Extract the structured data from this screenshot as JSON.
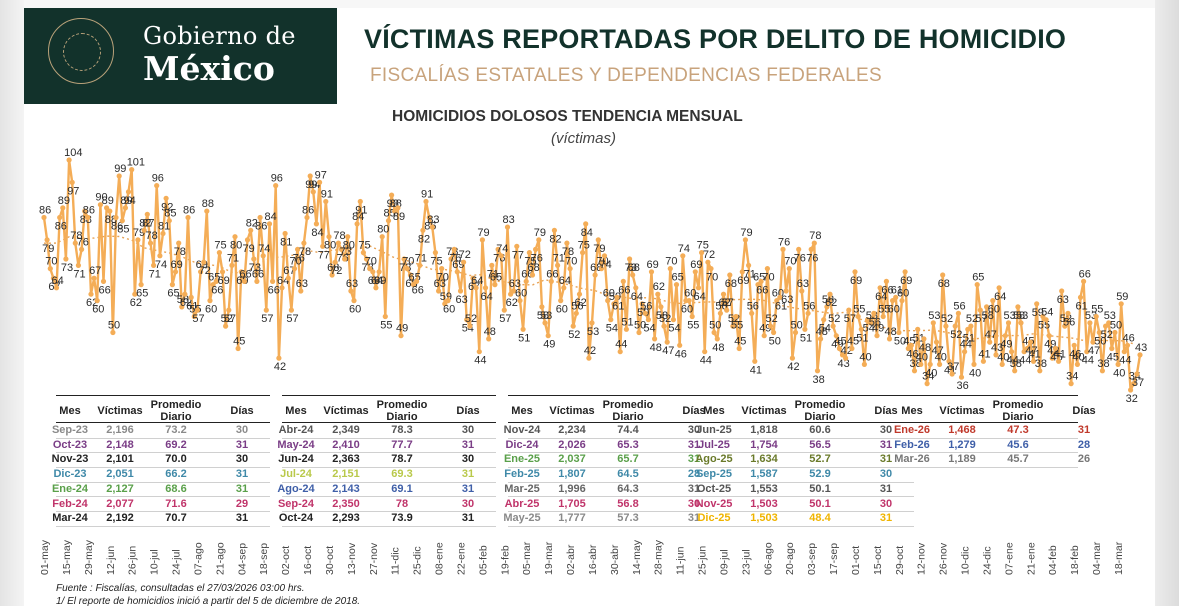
{
  "logo": {
    "line1": "Gobierno de",
    "line2": "México"
  },
  "title": "VÍCTIMAS REPORTADAS POR DELITO DE HOMICIDIO",
  "subtitle": "FISCALÍAS ESTATALES Y DEPENDENCIAS FEDERALES",
  "colors": {
    "line": "#f4ad57",
    "dark_green": "#12322b",
    "gold": "#c8a37c",
    "trend": "#e7a255"
  },
  "chart_data": {
    "type": "line",
    "title": "HOMICIDIOS DOLOSOS TENDENCIA MENSUAL",
    "subtitle": "(víctimas)",
    "x_ticks": [
      "01-may",
      "15-may",
      "29-may",
      "12-jun",
      "26-jun",
      "10-jul",
      "24-jul",
      "07-ago",
      "21-ago",
      "04-sep",
      "18-sep",
      "02-oct",
      "16-oct",
      "30-oct",
      "13-nov",
      "27-nov",
      "11-dic",
      "25-dic",
      "08-ene",
      "22-ene",
      "05-feb",
      "19-feb",
      "05-mar",
      "19-mar",
      "02-abr",
      "16-abr",
      "30-abr",
      "14-may",
      "28-may",
      "11-jun",
      "25-jun",
      "09-jul",
      "23-jul",
      "06-ago",
      "20-ago",
      "03-sep",
      "17-sep",
      "01-oct",
      "15-oct",
      "29-oct",
      "12-nov",
      "26-nov",
      "10-dic",
      "24-dic",
      "07-ene",
      "21-ene",
      "04-feb",
      "18-feb",
      "04-mar",
      "18-mar"
    ],
    "series": [
      {
        "name": "",
        "values": [
          86,
          79,
          70,
          67,
          64,
          86,
          89,
          73,
          104,
          97,
          78,
          71,
          76,
          88,
          86,
          62,
          67,
          60,
          90,
          66,
          89,
          88,
          50,
          86,
          99,
          85,
          89,
          94,
          101,
          62,
          79,
          65,
          82,
          87,
          78,
          71,
          96,
          74,
          81,
          92,
          85,
          65,
          69,
          78,
          58,
          62,
          86,
          61,
          55,
          57,
          69,
          72,
          88,
          60,
          65,
          66,
          75,
          69,
          52,
          57,
          71,
          80,
          45,
          69,
          66,
          79,
          82,
          73,
          66,
          86,
          74,
          57,
          84,
          66,
          96,
          42,
          64,
          81,
          67,
          57,
          70,
          76,
          63,
          78,
          86,
          99,
          94,
          84,
          97,
          77,
          91,
          80,
          68,
          72,
          78,
          76,
          73,
          80,
          63,
          60,
          84,
          91,
          75,
          73,
          70,
          69,
          64,
          69,
          80,
          55,
          85,
          93,
          88,
          89,
          49,
          73,
          70,
          68,
          65,
          66,
          71,
          82,
          91,
          86,
          83,
          75,
          63,
          70,
          59,
          60,
          73,
          76,
          69,
          63,
          72,
          54,
          52,
          67,
          64,
          44,
          79,
          64,
          48,
          71,
          65,
          76,
          74,
          57,
          83,
          62,
          63,
          77,
          60,
          51,
          66,
          75,
          68,
          76,
          79,
          58,
          53,
          49,
          66,
          82,
          71,
          60,
          64,
          78,
          70,
          52,
          56,
          62,
          75,
          84,
          42,
          53,
          68,
          79,
          70,
          74,
          60,
          54,
          59,
          61,
          44,
          66,
          51,
          73,
          68,
          64,
          50,
          59,
          56,
          54,
          69,
          48,
          62,
          58,
          52,
          47,
          70,
          54,
          65,
          46,
          74,
          60,
          60,
          55,
          69,
          64,
          75,
          44,
          72,
          70,
          50,
          48,
          56,
          62,
          57,
          68,
          52,
          55,
          45,
          69,
          79,
          71,
          56,
          41,
          65,
          66,
          49,
          70,
          52,
          50,
          60,
          61,
          76,
          63,
          70,
          42,
          50,
          76,
          63,
          51,
          56,
          76,
          78,
          38,
          48,
          54,
          58,
          62,
          52,
          49,
          45,
          43,
          42,
          57,
          45,
          69,
          55,
          51,
          40,
          54,
          53,
          56,
          49,
          64,
          55,
          66,
          48,
          60,
          61,
          50,
          60,
          69,
          45,
          46,
          38,
          51,
          40,
          48,
          34,
          40,
          53,
          47,
          40,
          68,
          52,
          41,
          37,
          52,
          56,
          36,
          44,
          51,
          52,
          40,
          65,
          57,
          41,
          58,
          47,
          60,
          43,
          64,
          40,
          49,
          53,
          44,
          38,
          58,
          53,
          44,
          45,
          47,
          41,
          59,
          38,
          55,
          54,
          49,
          42,
          45,
          41,
          63,
          52,
          56,
          34,
          46,
          40,
          61,
          66,
          44,
          53,
          47,
          55,
          50,
          38,
          52,
          53,
          45,
          50,
          40,
          59,
          44,
          46,
          32,
          34,
          37,
          43
        ]
      }
    ]
  },
  "table": {
    "headers": {
      "mes": "Mes",
      "victimas": "Víctimas",
      "promedio": "Promedio Diario",
      "dias": "Días"
    },
    "groups": [
      {
        "rows": [
          {
            "mes": "Sep-23",
            "victimas": "2,196",
            "promedio": "73.2",
            "dias": "30",
            "color": "#8a8a8a"
          },
          {
            "mes": "Oct-23",
            "victimas": "2,148",
            "promedio": "69.2",
            "dias": "31",
            "color": "#7a3d86"
          },
          {
            "mes": "Nov-23",
            "victimas": "2,101",
            "promedio": "70.0",
            "dias": "30",
            "color": "#222222"
          },
          {
            "mes": "Dic-23",
            "victimas": "2,051",
            "promedio": "66.2",
            "dias": "31",
            "color": "#3f89a8"
          },
          {
            "mes": "Ene-24",
            "victimas": "2,127",
            "promedio": "68.6",
            "dias": "31",
            "color": "#5aa04a"
          },
          {
            "mes": "Feb-24",
            "victimas": "2,077",
            "promedio": "71.6",
            "dias": "29",
            "color": "#c0346a"
          },
          {
            "mes": "Mar-24",
            "victimas": "2,192",
            "promedio": "70.7",
            "dias": "31",
            "color": "#222222"
          }
        ]
      },
      {
        "rows": [
          {
            "mes": "Abr-24",
            "victimas": "2,349",
            "promedio": "78.3",
            "dias": "30",
            "color": "#555555"
          },
          {
            "mes": "May-24",
            "victimas": "2,410",
            "promedio": "77.7",
            "dias": "31",
            "color": "#7a3d86"
          },
          {
            "mes": "Jun-24",
            "victimas": "2,363",
            "promedio": "78.7",
            "dias": "30",
            "color": "#222222"
          },
          {
            "mes": "Jul-24",
            "victimas": "2,151",
            "promedio": "69.3",
            "dias": "31",
            "color": "#b9c94a"
          },
          {
            "mes": "Ago-24",
            "victimas": "2,143",
            "promedio": "69.1",
            "dias": "31",
            "color": "#3f5fa8"
          },
          {
            "mes": "Sep-24",
            "victimas": "2,350",
            "promedio": "78",
            "dias": "30",
            "color": "#c0346a"
          },
          {
            "mes": "Oct-24",
            "victimas": "2,293",
            "promedio": "73.9",
            "dias": "31",
            "color": "#222222"
          }
        ]
      },
      {
        "rows": [
          {
            "mes": "Nov-24",
            "victimas": "2,234",
            "promedio": "74.4",
            "dias": "30",
            "color": "#555555"
          },
          {
            "mes": "Dic-24",
            "victimas": "2,026",
            "promedio": "65.3",
            "dias": "31",
            "color": "#7a3d86"
          },
          {
            "mes": "Ene-25",
            "victimas": "2,037",
            "promedio": "65.7",
            "dias": "31",
            "color": "#5aa04a"
          },
          {
            "mes": "Feb-25",
            "victimas": "1,807",
            "promedio": "64.5",
            "dias": "28",
            "color": "#3f89a8"
          },
          {
            "mes": "Mar-25",
            "victimas": "1,996",
            "promedio": "64.3",
            "dias": "31",
            "color": "#666666"
          },
          {
            "mes": "Abr-25",
            "victimas": "1,705",
            "promedio": "56.8",
            "dias": "30",
            "color": "#c0346a"
          },
          {
            "mes": "May-25",
            "victimas": "1,777",
            "promedio": "57.3",
            "dias": "31",
            "color": "#8a8a8a"
          }
        ]
      },
      {
        "rows": [
          {
            "mes": "Jun-25",
            "victimas": "1,818",
            "promedio": "60.6",
            "dias": "30",
            "color": "#555555"
          },
          {
            "mes": "Jul-25",
            "victimas": "1,754",
            "promedio": "56.5",
            "dias": "31",
            "color": "#7a3d86"
          },
          {
            "mes": "Ago-25",
            "victimas": "1,634",
            "promedio": "52.7",
            "dias": "31",
            "color": "#6a7a2a"
          },
          {
            "mes": "Sep-25",
            "victimas": "1,587",
            "promedio": "52.9",
            "dias": "30",
            "color": "#3f89a8"
          },
          {
            "mes": "Oct-25",
            "victimas": "1,553",
            "promedio": "50.1",
            "dias": "31",
            "color": "#555555"
          },
          {
            "mes": "Nov-25",
            "victimas": "1,503",
            "promedio": "50.1",
            "dias": "30",
            "color": "#c0346a"
          },
          {
            "mes": "Dic-25",
            "victimas": "1,503",
            "promedio": "48.4",
            "dias": "31",
            "color": "#f0b400"
          }
        ]
      },
      {
        "rows": [
          {
            "mes": "Ene-26",
            "victimas": "1,468",
            "promedio": "47.3",
            "dias": "31",
            "color": "#c0392b"
          },
          {
            "mes": "Feb-26",
            "victimas": "1,279",
            "promedio": "45.6",
            "dias": "28",
            "color": "#3f5fa8"
          },
          {
            "mes": "Mar-26",
            "victimas": "1,189",
            "promedio": "45.7",
            "dias": "26",
            "color": "#777777"
          }
        ]
      }
    ]
  },
  "footer": {
    "source": "Fuente : Fiscalías, consultadas el 27/03/2026 03:00 hrs.",
    "note": "1/ El reporte de homicidios inició a partir del 5 de diciembre de 2018."
  }
}
